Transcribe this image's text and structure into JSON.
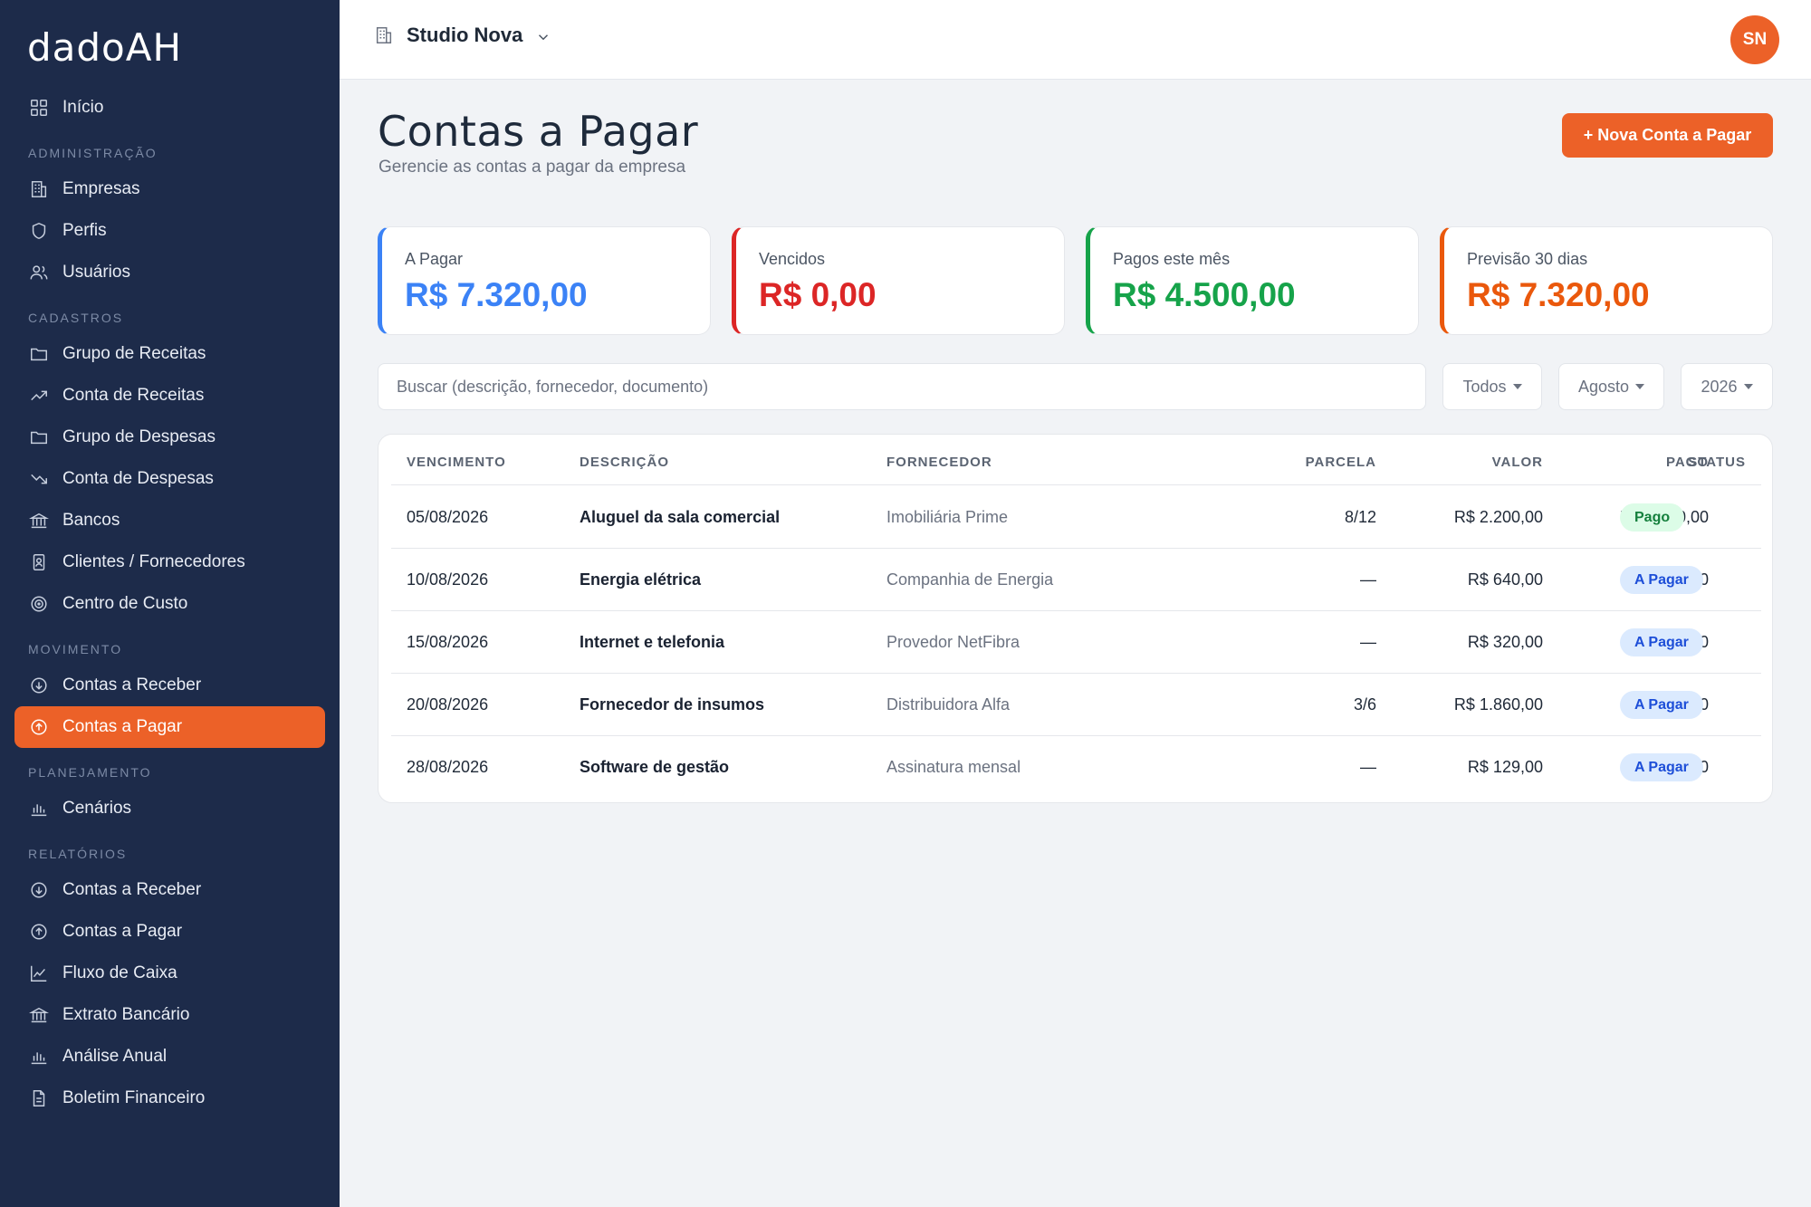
{
  "app": {
    "logo": "dadoAH"
  },
  "sidebar": {
    "inicio": "Início",
    "sections": {
      "administracao": "ADMINISTRAÇÃO",
      "cadastros": "CADASTROS",
      "movimento": "MOVIMENTO",
      "planejamento": "PLANEJAMENTO",
      "relatorios": "RELATÓRIOS"
    },
    "administracao": [
      {
        "label": "Empresas",
        "icon": "building-icon"
      },
      {
        "label": "Perfis",
        "icon": "shield-icon"
      },
      {
        "label": "Usuários",
        "icon": "users-icon"
      }
    ],
    "cadastros": [
      {
        "label": "Grupo de Receitas",
        "icon": "folder-icon"
      },
      {
        "label": "Conta de Receitas",
        "icon": "trending-up-icon"
      },
      {
        "label": "Grupo de Despesas",
        "icon": "folder-icon"
      },
      {
        "label": "Conta de Despesas",
        "icon": "trending-down-icon"
      },
      {
        "label": "Bancos",
        "icon": "bank-icon"
      },
      {
        "label": "Clientes / Fornecedores",
        "icon": "contact-icon"
      },
      {
        "label": "Centro de Custo",
        "icon": "target-icon"
      }
    ],
    "movimento": [
      {
        "label": "Contas a Receber",
        "icon": "arrow-down-circle-icon"
      },
      {
        "label": "Contas a Pagar",
        "icon": "arrow-up-circle-icon",
        "active": true
      }
    ],
    "planejamento": [
      {
        "label": "Cenários",
        "icon": "bar-chart-icon"
      }
    ],
    "relatorios": [
      {
        "label": "Contas a Receber",
        "icon": "arrow-down-circle-icon"
      },
      {
        "label": "Contas a Pagar",
        "icon": "arrow-up-circle-icon"
      },
      {
        "label": "Fluxo de Caixa",
        "icon": "line-chart-icon"
      },
      {
        "label": "Extrato Bancário",
        "icon": "bank-icon"
      },
      {
        "label": "Análise Anual",
        "icon": "bar-chart-icon"
      },
      {
        "label": "Boletim Financeiro",
        "icon": "document-icon"
      }
    ]
  },
  "topbar": {
    "company": "Studio Nova",
    "avatar_initials": "SN"
  },
  "header": {
    "title": "Contas a Pagar",
    "subtitle": "Gerencie as contas a pagar da empresa",
    "new_button": "+ Nova Conta a Pagar"
  },
  "summary": [
    {
      "label": "A Pagar",
      "value": "R$ 7.320,00",
      "color": "#3b82f6"
    },
    {
      "label": "Vencidos",
      "value": "R$ 0,00",
      "color": "#dc2626"
    },
    {
      "label": "Pagos este mês",
      "value": "R$ 4.500,00",
      "color": "#16a34a"
    },
    {
      "label": "Previsão 30 dias",
      "value": "R$ 7.320,00",
      "color": "#ea580c"
    }
  ],
  "filters": {
    "search_placeholder": "Buscar (descrição, fornecedor, documento)",
    "status": "Todos",
    "month": "Agosto",
    "year": "2026"
  },
  "table": {
    "headers": {
      "vencimento": "VENCIMENTO",
      "descricao": "DESCRIÇÃO",
      "fornecedor": "FORNECEDOR",
      "parcela": "PARCELA",
      "valor": "VALOR",
      "pago": "PAGO",
      "status": "STATUS"
    },
    "rows": [
      {
        "vencimento": "05/08/2026",
        "descricao": "Aluguel da sala comercial",
        "fornecedor": "Imobiliária Prime",
        "parcela": "8/12",
        "valor": "R$ 2.200,00",
        "pago": "R$ 2.200,00",
        "status": "Pago"
      },
      {
        "vencimento": "10/08/2026",
        "descricao": "Energia elétrica",
        "fornecedor": "Companhia de Energia",
        "parcela": "—",
        "valor": "R$ 640,00",
        "pago": "R$ 0,00",
        "status": "A Pagar"
      },
      {
        "vencimento": "15/08/2026",
        "descricao": "Internet e telefonia",
        "fornecedor": "Provedor NetFibra",
        "parcela": "—",
        "valor": "R$ 320,00",
        "pago": "R$ 0,00",
        "status": "A Pagar"
      },
      {
        "vencimento": "20/08/2026",
        "descricao": "Fornecedor de insumos",
        "fornecedor": "Distribuidora Alfa",
        "parcela": "3/6",
        "valor": "R$ 1.860,00",
        "pago": "R$ 0,00",
        "status": "A Pagar"
      },
      {
        "vencimento": "28/08/2026",
        "descricao": "Software de gestão",
        "fornecedor": "Assinatura mensal",
        "parcela": "—",
        "valor": "R$ 129,00",
        "pago": "R$ 0,00",
        "status": "A Pagar"
      }
    ]
  }
}
